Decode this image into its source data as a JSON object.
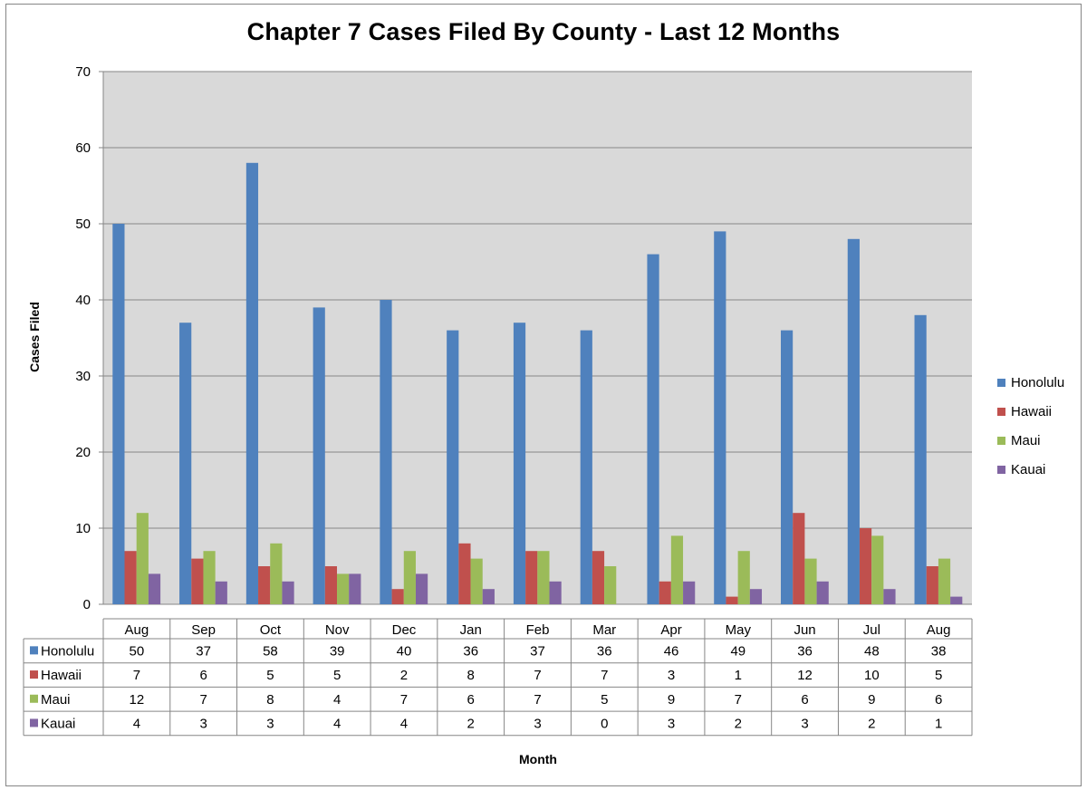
{
  "chart_data": {
    "type": "bar",
    "title": "Chapter 7 Cases Filed By County - Last 12 Months",
    "xlabel": "Month",
    "ylabel": "Cases Filed",
    "ylim": [
      0,
      70
    ],
    "yticks": [
      "0",
      "10",
      "20",
      "30",
      "40",
      "50",
      "60",
      "70"
    ],
    "grid": true,
    "legend_position": "right",
    "data_table": true,
    "categories": [
      "Aug",
      "Sep",
      "Oct",
      "Nov",
      "Dec",
      "Jan",
      "Feb",
      "Mar",
      "Apr",
      "May",
      "Jun",
      "Jul",
      "Aug"
    ],
    "series": [
      {
        "name": "Honolulu",
        "color": "#4F81BD",
        "values": [
          50,
          37,
          58,
          39,
          40,
          36,
          37,
          36,
          46,
          49,
          36,
          48,
          38
        ]
      },
      {
        "name": "Hawaii",
        "color": "#C0504D",
        "values": [
          7,
          6,
          5,
          5,
          2,
          8,
          7,
          7,
          3,
          1,
          12,
          10,
          5
        ]
      },
      {
        "name": "Maui",
        "color": "#9BBB59",
        "values": [
          12,
          7,
          8,
          4,
          7,
          6,
          7,
          5,
          9,
          7,
          6,
          9,
          6
        ]
      },
      {
        "name": "Kauai",
        "color": "#8064A2",
        "values": [
          4,
          3,
          3,
          4,
          4,
          2,
          3,
          0,
          3,
          2,
          3,
          2,
          1
        ]
      }
    ],
    "plot_background": "#D9D9D9"
  }
}
